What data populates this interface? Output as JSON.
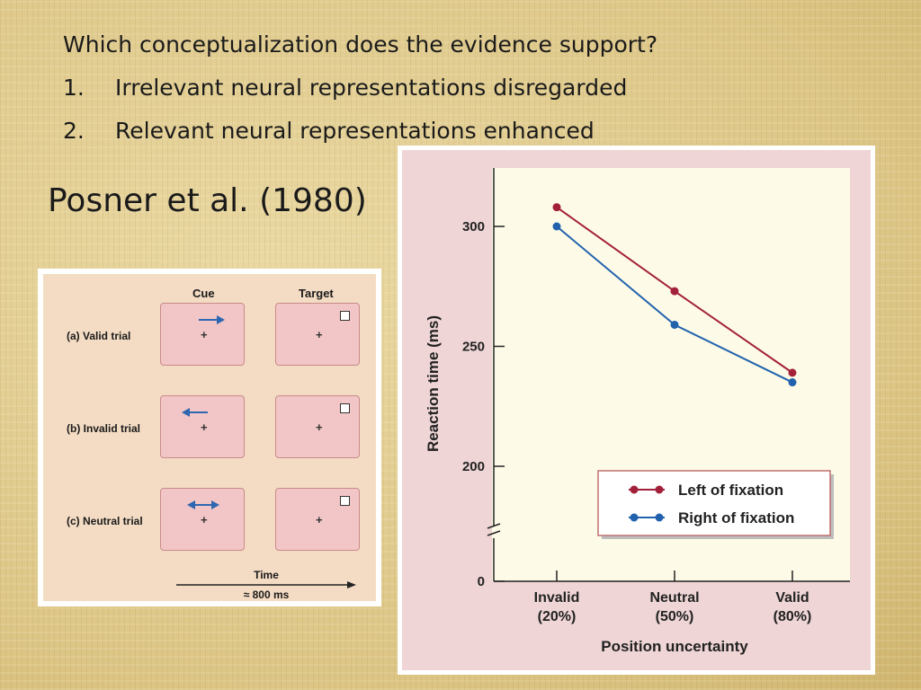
{
  "slide": {
    "question": "Which conceptualization does the evidence support?",
    "items": [
      {
        "num": "1.",
        "text": "Irrelevant neural representations disregarded"
      },
      {
        "num": "2.",
        "text": "Relevant neural representations enhanced"
      }
    ],
    "citation": "Posner et al. (1980)"
  },
  "cueing_figure": {
    "headers": {
      "cue": "Cue",
      "target": "Target"
    },
    "trials": [
      {
        "label": "(a) Valid trial",
        "cue": "right-arrow-icon"
      },
      {
        "label": "(b) Invalid trial",
        "cue": "left-arrow-icon"
      },
      {
        "label": "(c) Neutral trial",
        "cue": "double-arrow-icon"
      }
    ],
    "fixation": "+",
    "time_label": "Time",
    "time_value": "≈ 800 ms",
    "colors": {
      "arrow": "#2e67b1",
      "box": "#f2c6c6",
      "panel": "#f4dcc4"
    }
  },
  "chart_data": {
    "type": "line",
    "categories": [
      "Invalid\n(20%)",
      "Neutral\n(50%)",
      "Valid\n(80%)"
    ],
    "series": [
      {
        "name": "Left of fixation",
        "values": [
          308,
          273,
          239
        ],
        "color": "#a3203a"
      },
      {
        "name": "Right of fixation",
        "values": [
          300,
          259,
          235
        ],
        "color": "#2262ad"
      }
    ],
    "xlabel": "Position uncertainty",
    "ylabel": "Reaction time (ms)",
    "yticks": [
      0,
      200,
      250,
      300
    ],
    "ylim_break": [
      0,
      200
    ],
    "ylim": [
      175,
      322
    ],
    "legend": "bottom-right",
    "grid": false
  }
}
